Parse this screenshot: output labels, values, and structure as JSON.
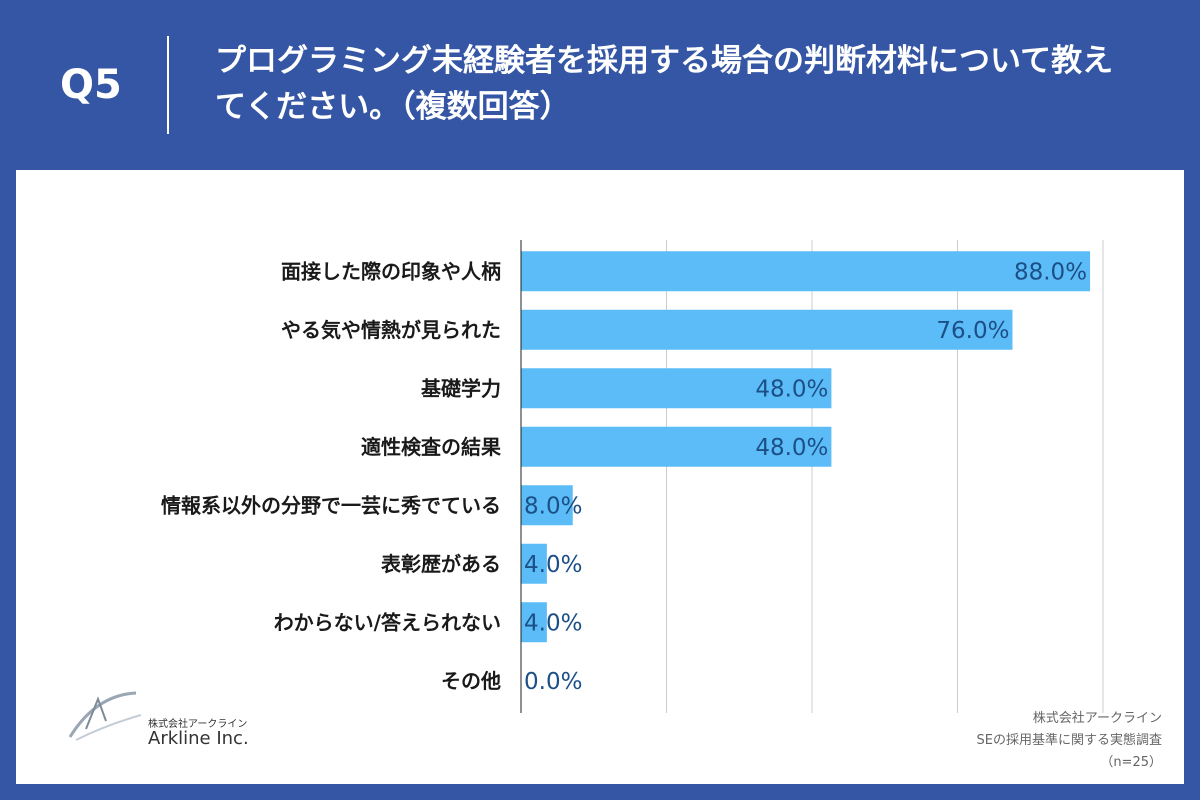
{
  "header": {
    "q_label": "Q5",
    "question": "プログラミング未経験者を採用する場合の判断材料について教えてください。（複数回答）"
  },
  "chart_data": {
    "type": "bar",
    "orientation": "horizontal",
    "categories": [
      "面接した際の印象や人柄",
      "やる気や情熱が見られた",
      "基礎学力",
      "適性検査の結果",
      "情報系以外の分野で一芸に秀でている",
      "表彰歴がある",
      "わからない/答えられない",
      "その他"
    ],
    "values": [
      88.0,
      76.0,
      48.0,
      48.0,
      8.0,
      4.0,
      4.0,
      0.0
    ],
    "value_labels": [
      "88.0%",
      "76.0%",
      "48.0%",
      "48.0%",
      "8.0%",
      "4.0%",
      "4.0%",
      "0.0%"
    ],
    "unit": "%",
    "xlim": [
      0,
      90
    ],
    "gridlines": [
      0,
      22.5,
      45,
      67.5,
      90
    ],
    "grid": true,
    "bar_color": "#5bbcf8"
  },
  "logo": {
    "sub": "株式会社アークライン",
    "name": "Arkline Inc."
  },
  "source": {
    "line1": "株式会社アークライン",
    "line2": "SEの採用基準に関する実態調査",
    "line3": "（n=25）"
  }
}
